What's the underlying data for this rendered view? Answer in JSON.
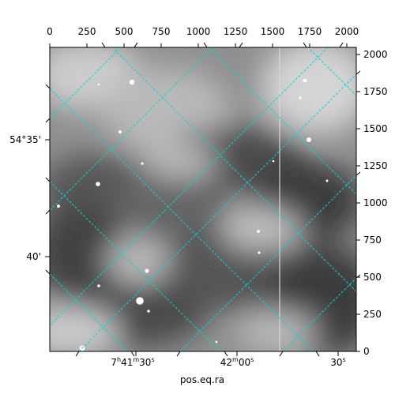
{
  "plot": {
    "xlabel": "pos.eq.ra"
  },
  "top_axis_ticks": [
    "0",
    "250",
    "500",
    "750",
    "1000",
    "1250",
    "1500",
    "1750",
    "2000"
  ],
  "right_axis_ticks": [
    "0",
    "250",
    "500",
    "750",
    "1000",
    "1250",
    "1500",
    "1750",
    "2000"
  ],
  "left_axis_ticks": [
    {
      "text": "54°35'"
    },
    {
      "text": "40'"
    }
  ],
  "bottom_axis_ticks": [
    {
      "h": "7",
      "m": "41",
      "s": "30"
    },
    {
      "m": "42",
      "s": "00"
    },
    {
      "s": "30"
    }
  ],
  "colors": {
    "grid": "#00d8d8",
    "axis": "#000000"
  }
}
